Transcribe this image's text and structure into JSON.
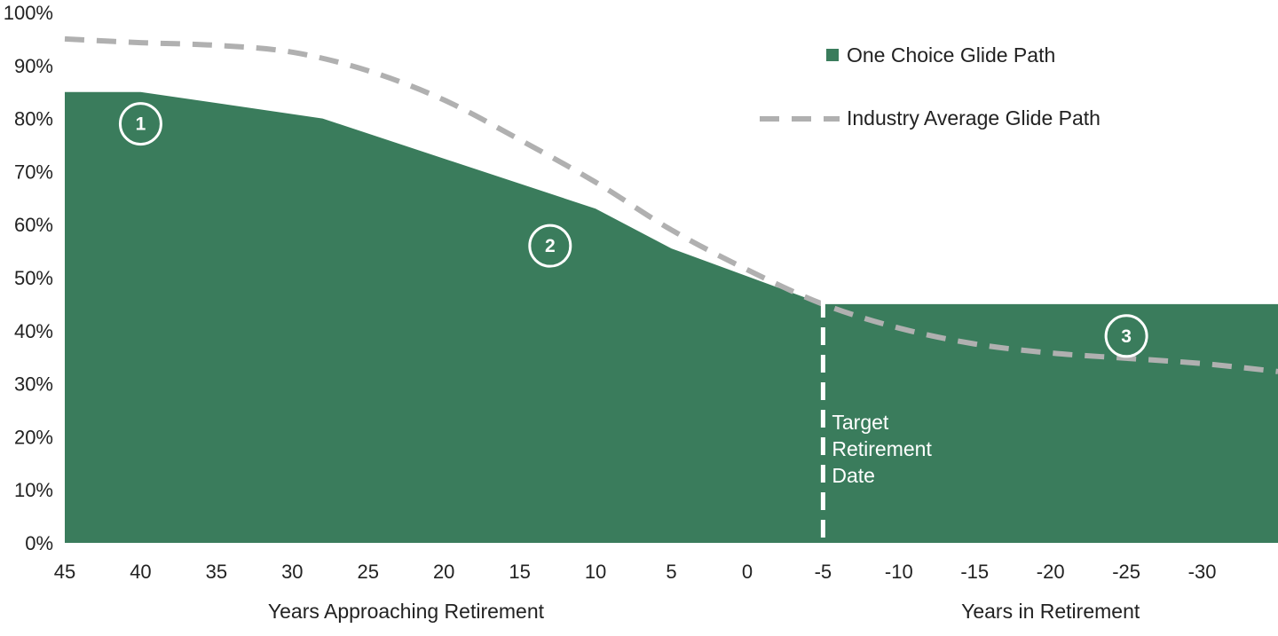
{
  "chart_data": {
    "type": "area",
    "x": [
      45,
      40,
      35,
      30,
      25,
      20,
      15,
      10,
      5,
      0,
      -5,
      -10,
      -15,
      -20,
      -25,
      -30,
      -35
    ],
    "x_tick_labels": [
      "45",
      "40",
      "35",
      "30",
      "25",
      "20",
      "15",
      "10",
      "5",
      "0",
      "-5",
      "-10",
      "-15",
      "-20",
      "-25",
      "-30"
    ],
    "xlim": [
      45,
      -35
    ],
    "ylim": [
      0,
      100
    ],
    "y_tick_labels": [
      "0%",
      "10%",
      "20%",
      "30%",
      "40%",
      "50%",
      "60%",
      "70%",
      "80%",
      "90%",
      "100%"
    ],
    "xlabels": [
      "Years Approaching Retirement",
      "Years in Retirement"
    ],
    "legend_position": "top-right",
    "grid": false,
    "series": [
      {
        "name": "One Choice Glide Path",
        "style": "filled-area",
        "color": "#3a7c5c",
        "x": [
          45,
          40,
          28,
          10,
          5,
          -5,
          -35
        ],
        "values": [
          85,
          85,
          80,
          63,
          55.5,
          45,
          45
        ]
      },
      {
        "name": "Industry Average Glide Path",
        "style": "dashed-line",
        "color": "#b0b0b0",
        "x": [
          45,
          40,
          35,
          30,
          25,
          20,
          15,
          10,
          5,
          0,
          -5,
          -10,
          -15,
          -20,
          -25,
          -30,
          -35
        ],
        "values": [
          95,
          94.3,
          93.8,
          92.5,
          89,
          83.5,
          76,
          68,
          59,
          51.5,
          45,
          40.5,
          37.5,
          35.8,
          34.8,
          33.8,
          32.3
        ]
      }
    ],
    "annotations": [
      {
        "label": "1",
        "x": 40,
        "y": 79
      },
      {
        "label": "2",
        "x": 13,
        "y": 56
      },
      {
        "label": "3",
        "x": -25,
        "y": 39
      }
    ],
    "retirement_marker": {
      "x": -5,
      "label_lines": [
        "Target",
        "Retirement",
        "Date"
      ]
    }
  }
}
